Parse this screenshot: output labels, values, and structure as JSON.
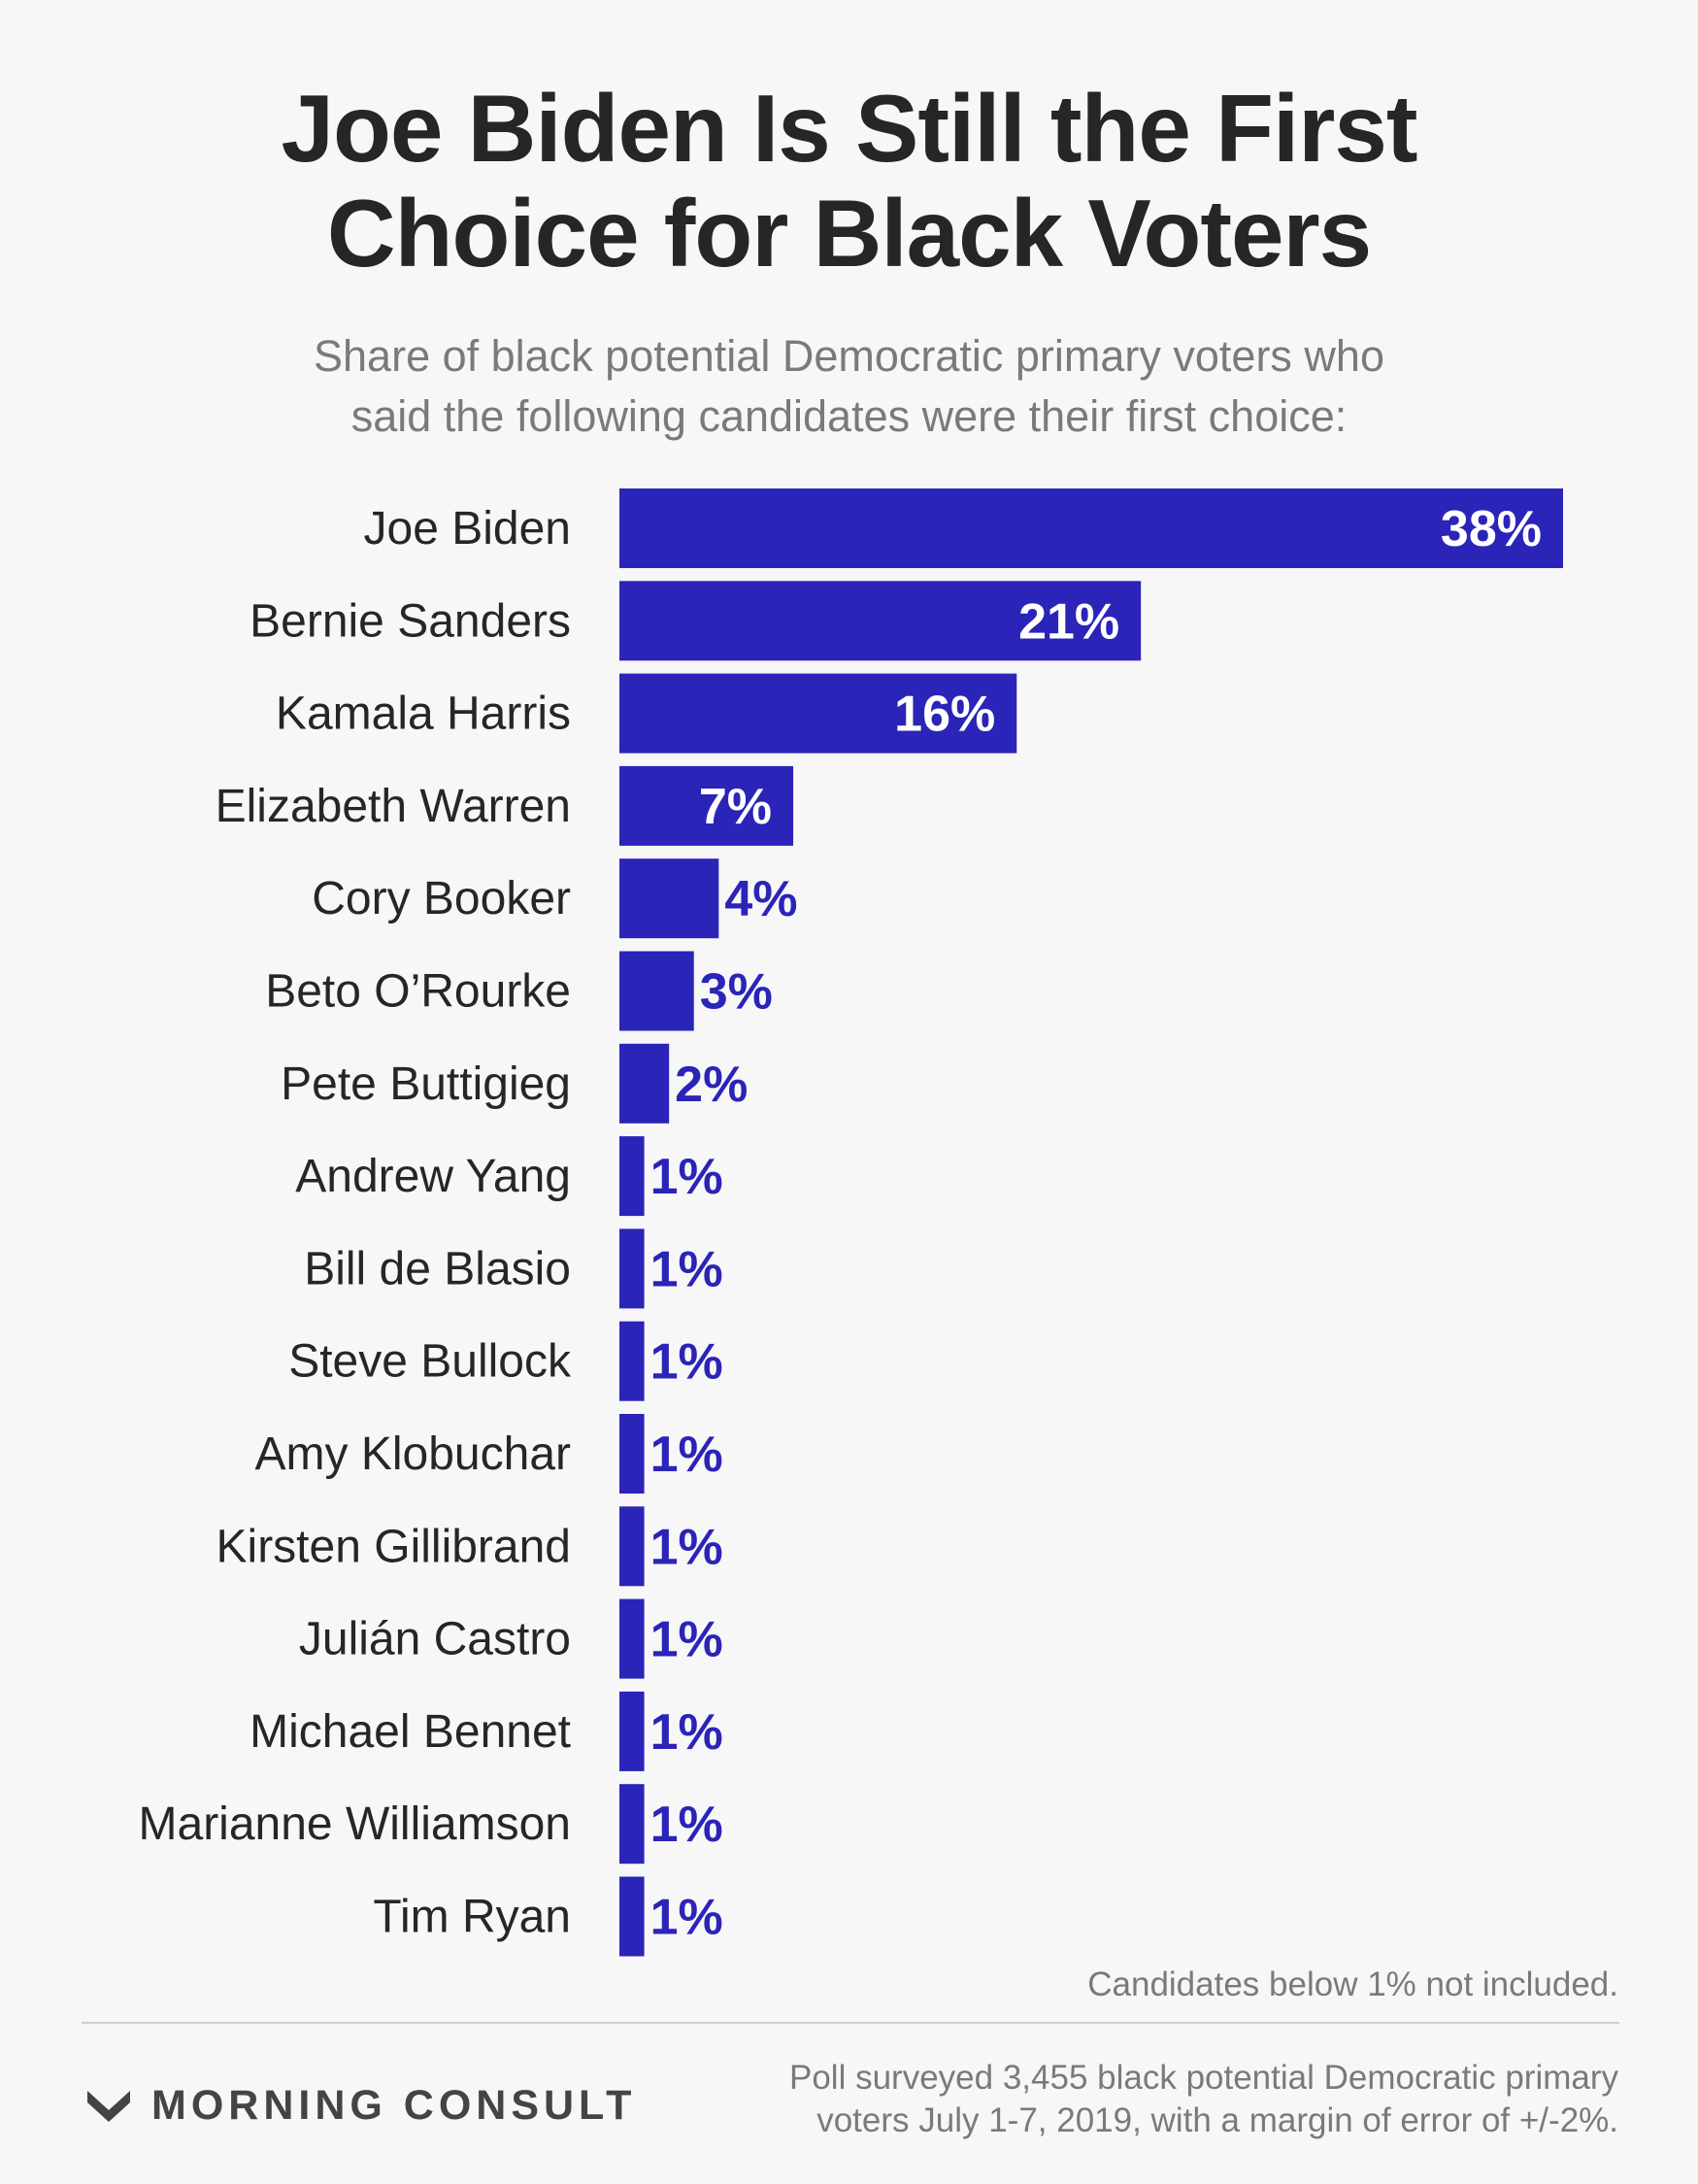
{
  "title_lines": [
    "Joe Biden Is Still the First",
    "Choice for Black Voters"
  ],
  "subtitle_lines": [
    "Share of black potential Democratic primary voters who",
    "said the following candidates were their first choice:"
  ],
  "note": "Candidates below 1% not included.",
  "brand": "MORNING CONSULT",
  "brand_icon": "morning-consult-logo-icon",
  "source_lines": [
    "Poll surveyed 3,455 black potential Democratic primary",
    "voters July 1-7, 2019, with a margin of error of +/-2%."
  ],
  "colors": {
    "bar": "#2b24b8",
    "inside_label": "#ffffff",
    "outside_label": "#2b24b8",
    "background": "#f7f7f7"
  },
  "chart_data": {
    "type": "bar",
    "orientation": "horizontal",
    "title": "Joe Biden Is Still the First Choice for Black Voters",
    "subtitle": "Share of black potential Democratic primary voters who said the following candidates were their first choice:",
    "xlabel": "",
    "ylabel": "",
    "xlim": [
      0,
      38
    ],
    "grid": false,
    "legend": "none",
    "categories": [
      "Joe Biden",
      "Bernie Sanders",
      "Kamala Harris",
      "Elizabeth Warren",
      "Cory Booker",
      "Beto O’Rourke",
      "Pete Buttigieg",
      "Andrew Yang",
      "Bill de Blasio",
      "Steve Bullock",
      "Amy Klobuchar",
      "Kirsten Gillibrand",
      "Julián Castro",
      "Michael Bennet",
      "Marianne Williamson",
      "Tim Ryan"
    ],
    "values": [
      38,
      21,
      16,
      7,
      4,
      3,
      2,
      1,
      1,
      1,
      1,
      1,
      1,
      1,
      1,
      1
    ],
    "value_labels": [
      "38%",
      "21%",
      "16%",
      "7%",
      "4%",
      "3%",
      "2%",
      "1%",
      "1%",
      "1%",
      "1%",
      "1%",
      "1%",
      "1%",
      "1%",
      "1%"
    ]
  }
}
